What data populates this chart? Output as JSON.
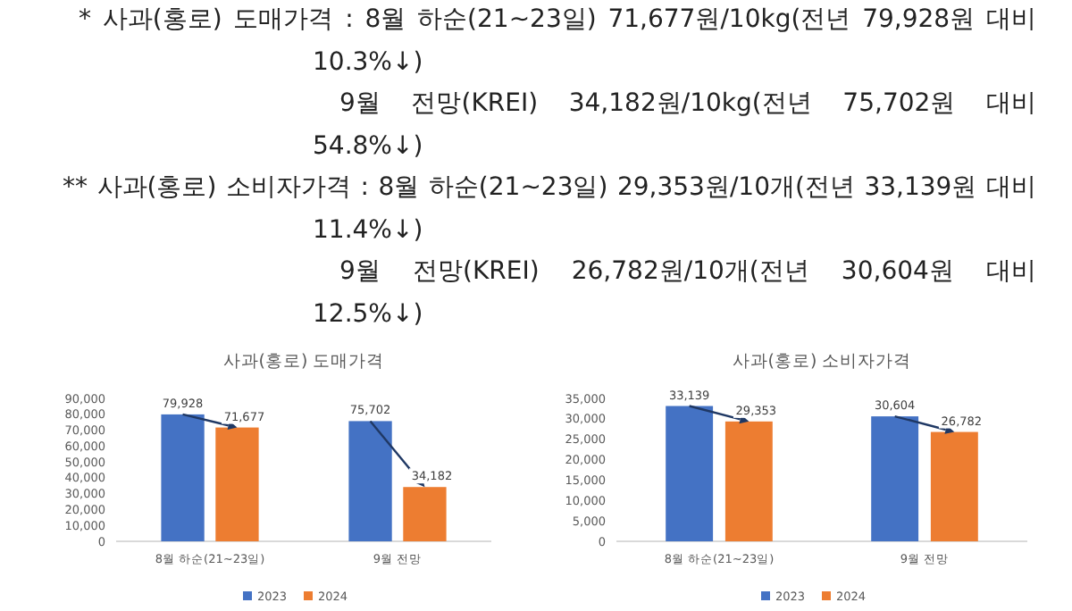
{
  "chart_data": [
    {
      "type": "other",
      "annotations": [
        "* 사과(홍로) 도매가격 : 8월 하순(21~23일) 71,677원/10kg(전년 79,928원 대비 10.3%↓)",
        "9월 전망(KREI) 34,182원/10kg(전년 75,702원 대비 54.8%↓)",
        "** 사과(홍로) 소비자가격 : 8월 하순(21~23일) 29,353원/10개(전년 33,139원 대비 11.4%↓)",
        "9월 전망(KREI) 26,782원/10개(전년 30,604원 대비 12.5%↓)"
      ]
    },
    {
      "type": "bar",
      "title": "사과(홍로) 도매가격",
      "categories": [
        "8월 하순(21~23일)",
        "9월 전망"
      ],
      "series": [
        {
          "name": "2023",
          "color": "#4472c4",
          "values": [
            79928,
            75702
          ],
          "value_labels": [
            "79,928",
            "75,702"
          ]
        },
        {
          "name": "2024",
          "color": "#ed7d31",
          "values": [
            71677,
            34182
          ],
          "value_labels": [
            "71,677",
            "34,182"
          ]
        }
      ],
      "ylim": [
        0,
        90000
      ],
      "yticks": [
        {
          "value": 0,
          "label": "0"
        },
        {
          "value": 10000,
          "label": "10,000"
        },
        {
          "value": 20000,
          "label": "20,000"
        },
        {
          "value": 30000,
          "label": "30,000"
        },
        {
          "value": 40000,
          "label": "40,000"
        },
        {
          "value": 50000,
          "label": "50,000"
        },
        {
          "value": 60000,
          "label": "60,000"
        },
        {
          "value": 70000,
          "label": "70,000"
        },
        {
          "value": 80000,
          "label": "80,000"
        },
        {
          "value": 90000,
          "label": "90,000"
        }
      ],
      "legend": "bottom"
    },
    {
      "type": "bar",
      "title": "사과(홍로) 소비자가격",
      "categories": [
        "8월 하순(21~23일)",
        "9월 전망"
      ],
      "series": [
        {
          "name": "2023",
          "color": "#4472c4",
          "values": [
            33139,
            30604
          ],
          "value_labels": [
            "33,139",
            "30,604"
          ]
        },
        {
          "name": "2024",
          "color": "#ed7d31",
          "values": [
            29353,
            26782
          ],
          "value_labels": [
            "29,353",
            "26,782"
          ]
        }
      ],
      "ylim": [
        0,
        35000
      ],
      "yticks": [
        {
          "value": 0,
          "label": "0"
        },
        {
          "value": 5000,
          "label": "5,000"
        },
        {
          "value": 10000,
          "label": "10,000"
        },
        {
          "value": 15000,
          "label": "15,000"
        },
        {
          "value": 20000,
          "label": "20,000"
        },
        {
          "value": 25000,
          "label": "25,000"
        },
        {
          "value": 30000,
          "label": "30,000"
        },
        {
          "value": 35000,
          "label": "35,000"
        }
      ],
      "legend": "bottom"
    }
  ]
}
